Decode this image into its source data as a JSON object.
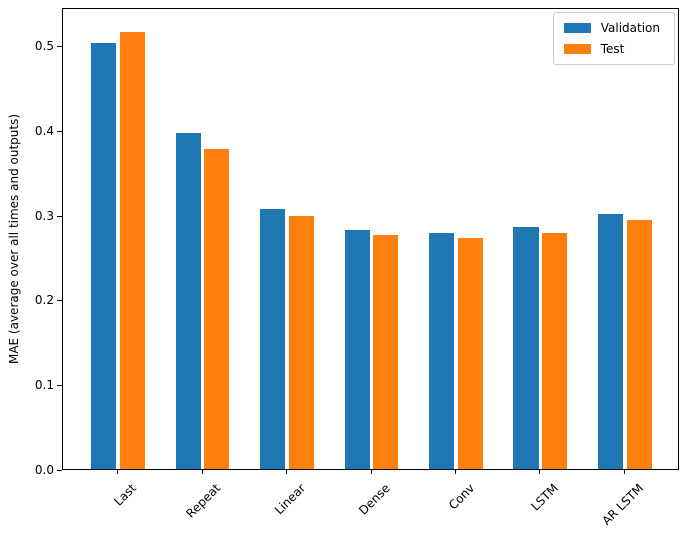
{
  "chart_data": {
    "type": "bar",
    "title": "",
    "ylabel": "MAE (average over all times and outputs)",
    "xlabel": "",
    "categories": [
      "Last",
      "Repeat",
      "Linear",
      "Dense",
      "Conv",
      "LSTM",
      "AR LSTM"
    ],
    "series": [
      {
        "name": "Validation",
        "color": "#1f77b4",
        "values": [
          0.503,
          0.397,
          0.307,
          0.282,
          0.279,
          0.286,
          0.301
        ]
      },
      {
        "name": "Test",
        "color": "#ff7f0e",
        "values": [
          0.516,
          0.377,
          0.298,
          0.276,
          0.273,
          0.278,
          0.294
        ]
      }
    ],
    "ylim": [
      0,
      0.545
    ],
    "yticks": [
      0.0,
      0.1,
      0.2,
      0.3,
      0.4,
      0.5
    ],
    "ytick_labels": [
      "0.0",
      "0.1",
      "0.2",
      "0.3",
      "0.4",
      "0.5"
    ],
    "bar_width": 0.3,
    "bar_offset": 0.17,
    "x_tick_rotation": 45,
    "legend": {
      "position": "upper right",
      "labels": [
        "Validation",
        "Test"
      ]
    },
    "grid": false,
    "axis_color": "#000000",
    "background": "#ffffff"
  }
}
